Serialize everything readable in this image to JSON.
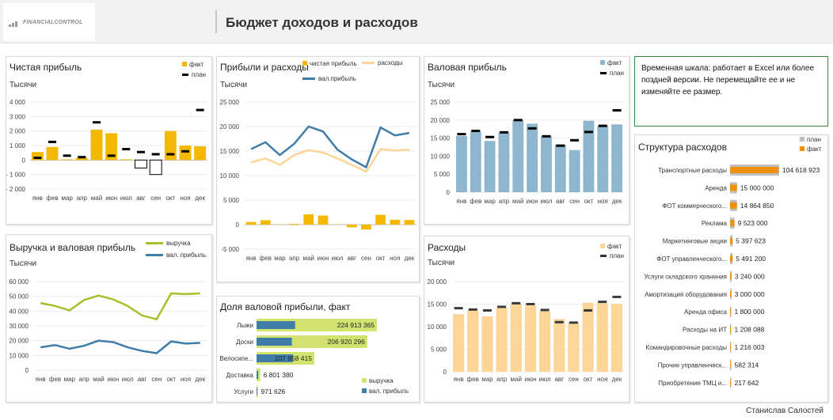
{
  "header": {
    "logo_text": "FINANCIALCONTROL",
    "title": "Бюджет доходов и расходов"
  },
  "note": "Временная шкала: работает в Excel или более поздней версии. Не перемещайте ее и не изменяйте ее размер.",
  "footer": "Станислав Салостей",
  "colors": {
    "fact_yellow": "#f5b800",
    "plan_black": "#000000",
    "revenue_green": "#a8bf2a",
    "gross_blue": "#3f7ca8",
    "expense_peach": "#fcd597",
    "steel_blue": "#8fb6cf",
    "orange": "#f0900e",
    "plan_gray": "#bfbfbf",
    "share_green": "#d1e26e"
  },
  "chart_data": [
    {
      "id": "net-profit",
      "type": "bar",
      "title": "Чистая прибыль",
      "ylabel": "Тысячи",
      "categories": [
        "янв",
        "фев",
        "мар",
        "апр",
        "май",
        "июн",
        "июл",
        "авг",
        "сен",
        "окт",
        "ноя",
        "дек"
      ],
      "yticks": [
        "4 000",
        "3 000",
        "2 000",
        "1 000",
        "0",
        "- 1 000",
        "- 2 000"
      ],
      "ylim": [
        -2000,
        4000
      ],
      "legend": [
        "факт",
        "план"
      ],
      "series": [
        {
          "name": "факт",
          "values": [
            550,
            900,
            50,
            150,
            2100,
            1850,
            50,
            -550,
            -1000,
            2000,
            1000,
            950
          ]
        },
        {
          "name": "план",
          "values": [
            150,
            1250,
            300,
            200,
            2600,
            300,
            750,
            550,
            400,
            400,
            600,
            3450
          ]
        }
      ]
    },
    {
      "id": "profit-expenses",
      "type": "line",
      "title": "Прибыли и расходы",
      "ylabel": "Тысячи",
      "categories": [
        "янв",
        "фев",
        "мар",
        "апр",
        "май",
        "июн",
        "июл",
        "авг",
        "сен",
        "окт",
        "ноя",
        "дек"
      ],
      "yticks": [
        "25 000",
        "20 000",
        "15 000",
        "10 000",
        "5 000",
        "0",
        "-5 000"
      ],
      "ylim": [
        -5000,
        25000
      ],
      "legend": [
        "чистая прибыль",
        "расходы",
        "вал.прибыль"
      ],
      "series": [
        {
          "name": "чистая прибыль",
          "values": [
            550,
            900,
            50,
            150,
            2100,
            1850,
            50,
            -550,
            -1000,
            2000,
            1000,
            950
          ]
        },
        {
          "name": "расходы",
          "values": [
            12700,
            13500,
            12200,
            14200,
            15200,
            14700,
            13500,
            12200,
            10800,
            15400,
            15100,
            15300
          ]
        },
        {
          "name": "вал.прибыль",
          "values": [
            15400,
            16800,
            14200,
            16500,
            20000,
            19000,
            15300,
            13300,
            11700,
            19800,
            18200,
            18700
          ]
        }
      ]
    },
    {
      "id": "gross-profit",
      "type": "bar",
      "title": "Валовая прибыль",
      "ylabel": "Тысячи",
      "categories": [
        "янв",
        "фев",
        "мар",
        "апр",
        "май",
        "июн",
        "июл",
        "авг",
        "сен",
        "окт",
        "ноя",
        "дек"
      ],
      "yticks": [
        "25 000",
        "20 000",
        "15 000",
        "10 000",
        "5 000",
        "0"
      ],
      "ylim": [
        0,
        25000
      ],
      "legend": [
        "факт",
        "план"
      ],
      "series": [
        {
          "name": "факт",
          "values": [
            15600,
            16800,
            14200,
            16600,
            19900,
            19000,
            15500,
            13200,
            11700,
            19800,
            18400,
            18800
          ]
        },
        {
          "name": "план",
          "values": [
            16100,
            17000,
            15300,
            16600,
            20000,
            17700,
            15500,
            12900,
            14400,
            16700,
            18400,
            22700
          ]
        }
      ]
    },
    {
      "id": "revenue-gross",
      "type": "line",
      "title": "Выручка и валовая прибыль",
      "ylabel": "Тысячи",
      "categories": [
        "янв",
        "фев",
        "мар",
        "апр",
        "май",
        "июн",
        "июл",
        "авг",
        "сен",
        "окт",
        "ноя",
        "дек"
      ],
      "yticks": [
        "60 000",
        "50 000",
        "40 000",
        "30 000",
        "20 000",
        "10 000",
        "0"
      ],
      "ylim": [
        0,
        60000
      ],
      "legend": [
        "выручка",
        "вал. прибыль"
      ],
      "series": [
        {
          "name": "выручка",
          "values": [
            45500,
            43500,
            40500,
            47500,
            50500,
            48000,
            43500,
            37000,
            34500,
            52000,
            51500,
            52000
          ]
        },
        {
          "name": "вал. прибыль",
          "values": [
            15500,
            17000,
            14500,
            16500,
            20000,
            19000,
            15500,
            13000,
            11500,
            19500,
            18000,
            18500
          ]
        }
      ]
    },
    {
      "id": "gross-share",
      "type": "bar",
      "title": "Доля валовой прибыли, факт",
      "categories": [
        "Лыжи",
        "Доски",
        "Велосипе...",
        "Доставка",
        "Услуги"
      ],
      "labels": [
        "224 913 365",
        "206 920 296",
        "107 958 415",
        "6 801 380",
        "971 626"
      ],
      "legend": [
        "выручка",
        "вал. прибыль"
      ],
      "series": [
        {
          "name": "выручка",
          "values": [
            224913365,
            206920296,
            107958415,
            6801380,
            971626
          ]
        },
        {
          "name": "вал. прибыль",
          "values": [
            72000000,
            66000000,
            68000000,
            3000000,
            500000
          ]
        }
      ]
    },
    {
      "id": "expenses",
      "type": "bar",
      "title": "Расходы",
      "ylabel": "Тысячи",
      "categories": [
        "янв",
        "фев",
        "мар",
        "апр",
        "май",
        "июн",
        "июл",
        "авг",
        "сен",
        "окт",
        "ноя",
        "дек"
      ],
      "yticks": [
        "20 000",
        "15 000",
        "10 000",
        "5 000",
        "0"
      ],
      "ylim": [
        0,
        20000
      ],
      "legend": [
        "факт",
        "план"
      ],
      "series": [
        {
          "name": "факт",
          "values": [
            12800,
            13600,
            12300,
            14300,
            15100,
            14700,
            13400,
            11700,
            10900,
            15300,
            15200,
            15100
          ]
        },
        {
          "name": "план",
          "values": [
            14100,
            13800,
            13600,
            14400,
            15200,
            15000,
            13700,
            11000,
            10900,
            13600,
            15500,
            16600
          ]
        }
      ]
    },
    {
      "id": "expense-structure",
      "type": "bar",
      "title": "Структура расходов",
      "legend": [
        "план",
        "факт"
      ],
      "categories": [
        "Транспортные расходы",
        "Аренда",
        "ФОТ коммерческого...",
        "Реклама",
        "Маркетинговые акции",
        "ФОТ управленческого...",
        "Услуги складского хранения",
        "Амортизация оборудования",
        "Аренда офиса",
        "Расходы на ИТ",
        "Командировочные расходы",
        "Прочие управленческ...",
        "Приобретение ТМЦ и..."
      ],
      "labels": [
        "104 618 923",
        "15 000 000",
        "14 864 850",
        "9 523 000",
        "5 397 623",
        "5 491 200",
        "3 240 000",
        "3 000 000",
        "1 800 000",
        "1 208 088",
        "1 216 003",
        "582 314",
        "217 642"
      ],
      "series": [
        {
          "name": "план",
          "values": [
            106000000,
            15000000,
            15000000,
            9600000,
            5400000,
            5500000,
            3200000,
            3000000,
            1800000,
            1200000,
            1200000,
            600000,
            200000
          ]
        },
        {
          "name": "факт",
          "values": [
            104618923,
            15000000,
            14864850,
            9523000,
            5397623,
            5491200,
            3240000,
            3000000,
            1800000,
            1208088,
            1216003,
            582314,
            217642
          ]
        }
      ]
    }
  ]
}
